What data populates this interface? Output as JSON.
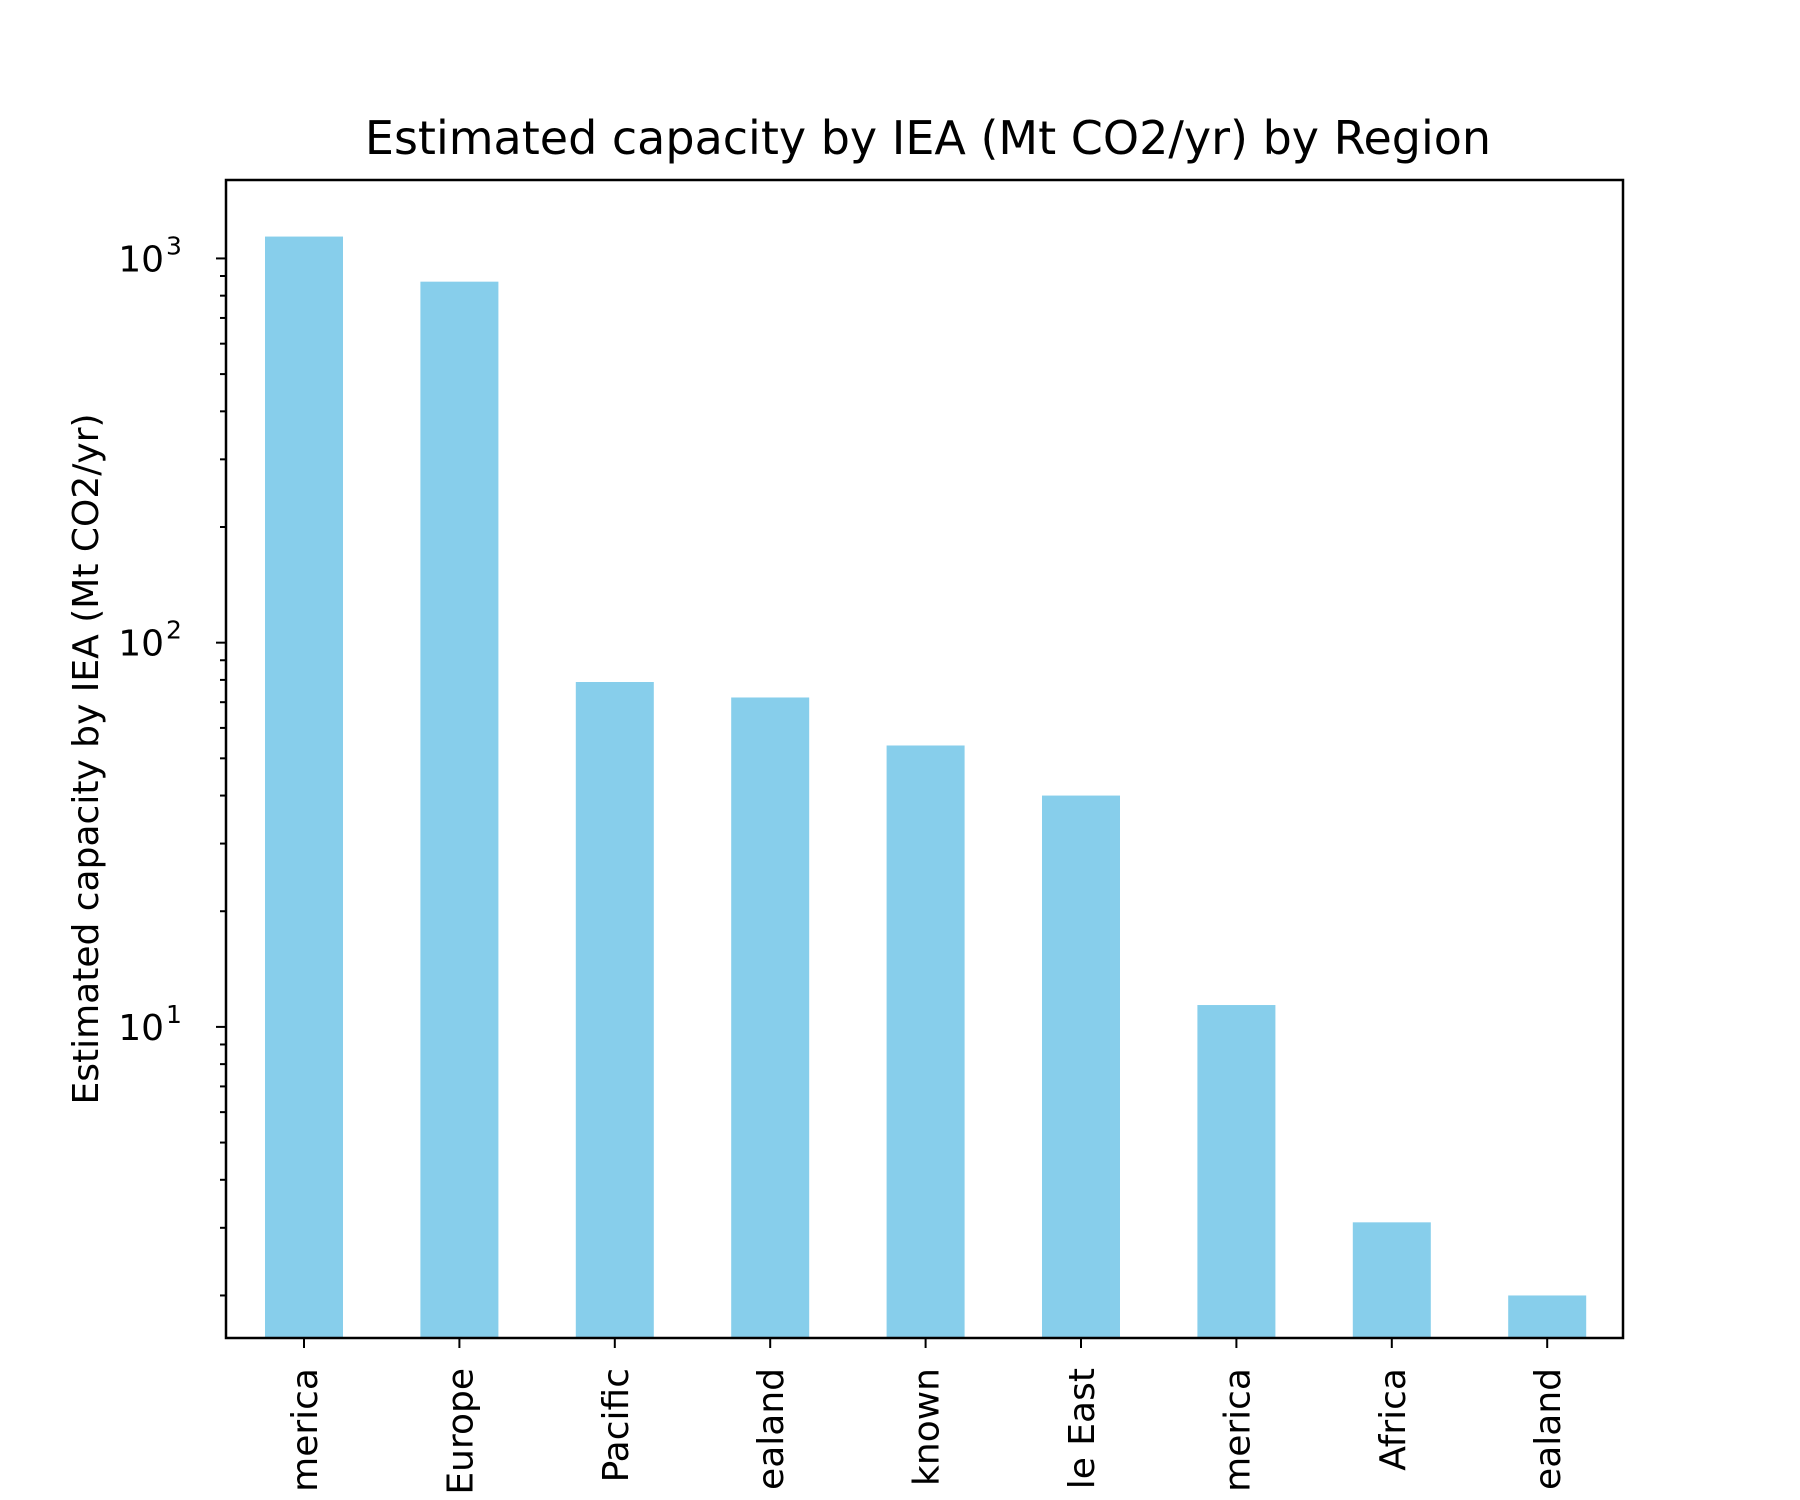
{
  "chart_data": {
    "type": "bar",
    "title": "Estimated capacity by IEA (Mt CO2/yr) by Region",
    "xlabel": "",
    "ylabel": "Estimated capacity by IEA (Mt CO2/yr)",
    "yscale": "log",
    "ylim": [
      1.55,
      1600
    ],
    "yticks": [
      {
        "value": 10,
        "base": "10",
        "exp": "1"
      },
      {
        "value": 100,
        "base": "10",
        "exp": "2"
      },
      {
        "value": 1000,
        "base": "10",
        "exp": "3"
      }
    ],
    "categories": [
      "merica",
      "Europe",
      "Pacific",
      "ealand",
      "known",
      "le East",
      "merica",
      "Africa",
      "ealand"
    ],
    "values": [
      1140,
      870,
      79,
      72,
      54,
      40,
      11.4,
      3.1,
      2.0
    ],
    "bar_color": "#87ceeb",
    "grid": false,
    "legend": "none"
  }
}
